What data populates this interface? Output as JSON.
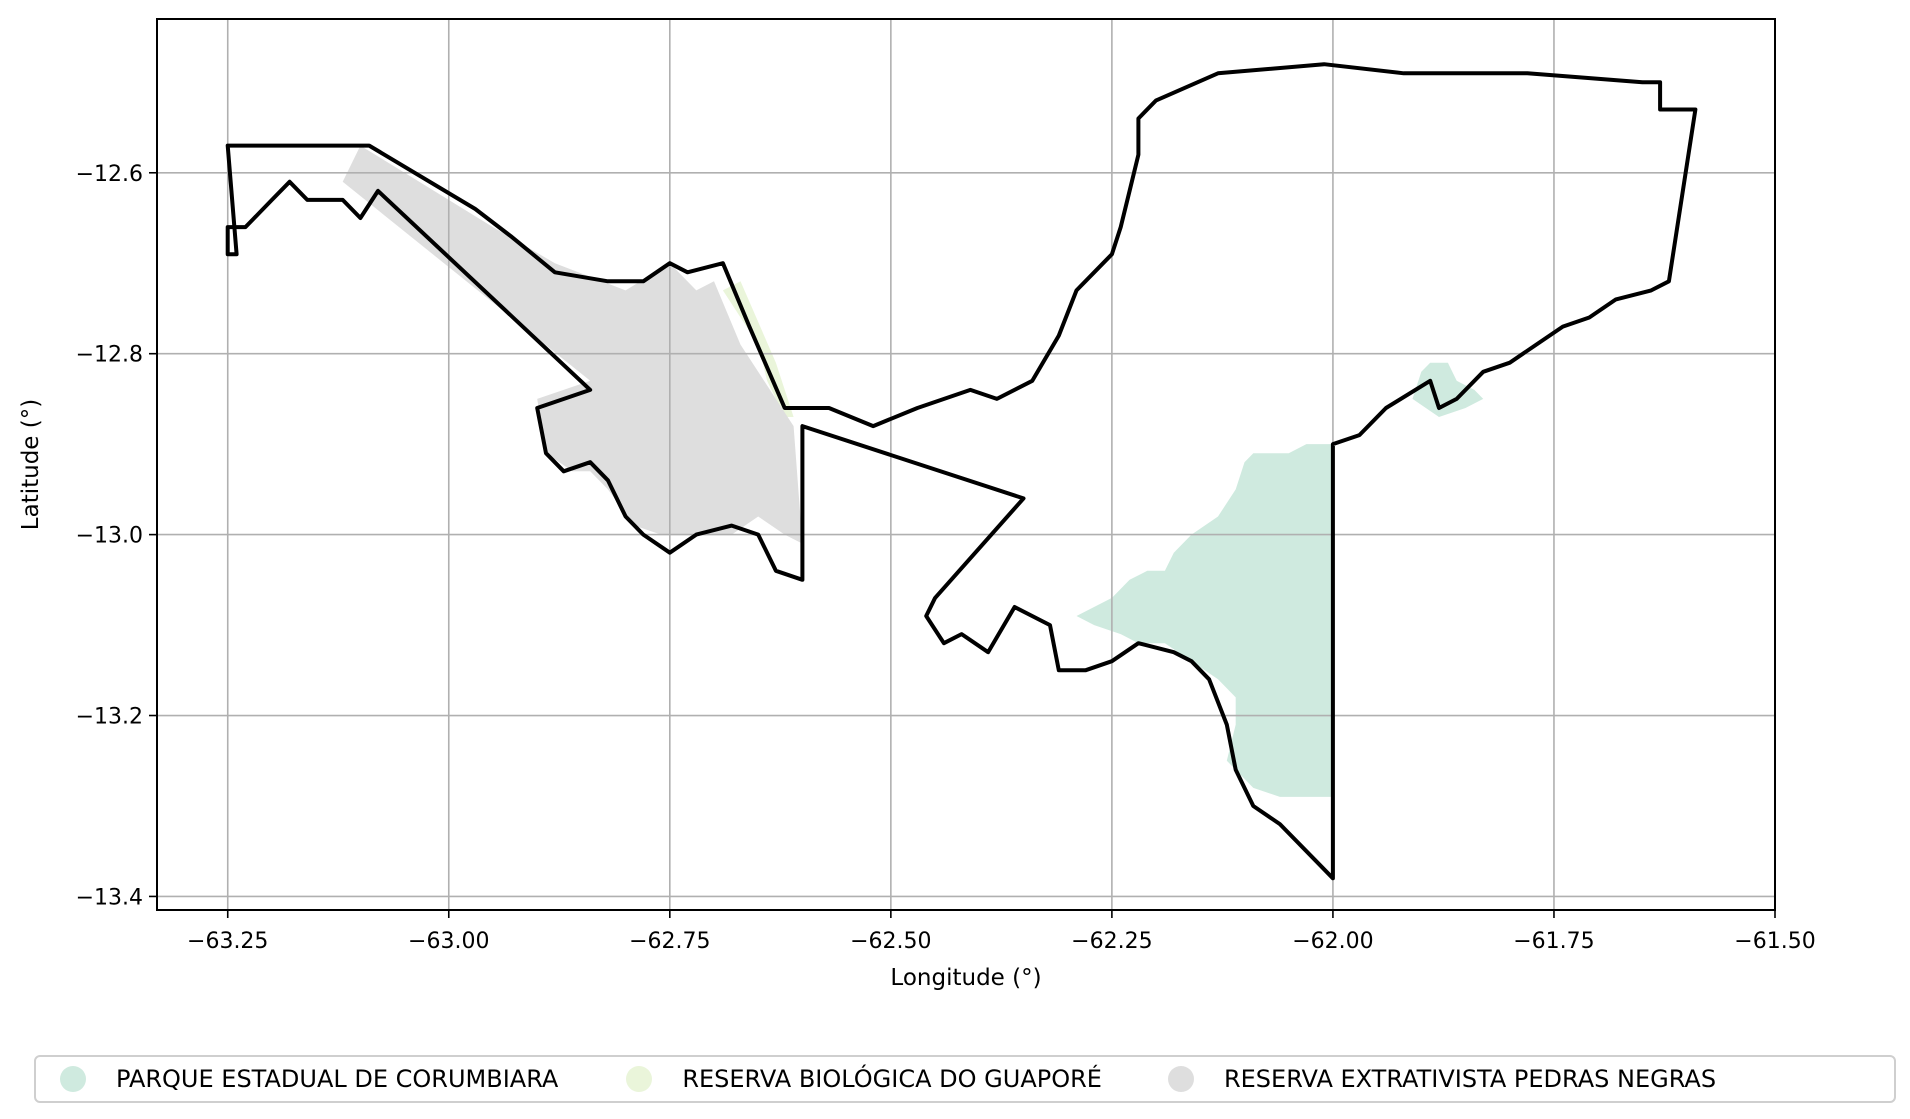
{
  "chart_data": {
    "type": "map",
    "xlabel": "Longitude (°)",
    "ylabel": "Latitude (°)",
    "xlim": [
      -63.33,
      -61.5
    ],
    "ylim": [
      -13.415,
      -12.43
    ],
    "xticks": [
      -63.25,
      -63.0,
      -62.75,
      -62.5,
      -62.25,
      -62.0,
      -61.75,
      -61.5
    ],
    "xtick_labels": [
      "−63.25",
      "−63.00",
      "−62.75",
      "−62.50",
      "−62.25",
      "−62.00",
      "−61.75",
      "−61.50"
    ],
    "yticks": [
      -12.6,
      -12.8,
      -13.0,
      -13.2,
      -13.4
    ],
    "ytick_labels": [
      "−12.6",
      "−12.8",
      "−13.0",
      "−13.2",
      "−13.4"
    ],
    "grid": true,
    "legend_position": "bottom",
    "areas": [
      {
        "name": "PARQUE ESTADUAL DE CORUMBIARA",
        "color": "#cfeadf",
        "polygons": [
          [
            [
              -62.0,
              -12.9
            ],
            [
              -62.03,
              -12.9
            ],
            [
              -62.05,
              -12.91
            ],
            [
              -62.09,
              -12.91
            ],
            [
              -62.1,
              -12.92
            ],
            [
              -62.11,
              -12.95
            ],
            [
              -62.13,
              -12.98
            ],
            [
              -62.16,
              -13.0
            ],
            [
              -62.18,
              -13.02
            ],
            [
              -62.19,
              -13.04
            ],
            [
              -62.21,
              -13.04
            ],
            [
              -62.23,
              -13.05
            ],
            [
              -62.25,
              -13.07
            ],
            [
              -62.29,
              -13.09
            ],
            [
              -62.27,
              -13.1
            ],
            [
              -62.24,
              -13.11
            ],
            [
              -62.22,
              -13.12
            ],
            [
              -62.19,
              -13.12
            ],
            [
              -62.16,
              -13.14
            ],
            [
              -62.13,
              -13.16
            ],
            [
              -62.11,
              -13.18
            ],
            [
              -62.11,
              -13.21
            ],
            [
              -62.12,
              -13.25
            ],
            [
              -62.09,
              -13.28
            ],
            [
              -62.06,
              -13.29
            ],
            [
              -62.0,
              -13.29
            ]
          ],
          [
            [
              -61.89,
              -12.81
            ],
            [
              -61.87,
              -12.81
            ],
            [
              -61.86,
              -12.83
            ],
            [
              -61.84,
              -12.84
            ],
            [
              -61.83,
              -12.85
            ],
            [
              -61.85,
              -12.86
            ],
            [
              -61.88,
              -12.87
            ],
            [
              -61.91,
              -12.85
            ],
            [
              -61.9,
              -12.82
            ]
          ]
        ]
      },
      {
        "name": "RESERVA BIOLÓGICA DO GUAPORÉ",
        "color": "#eaf5da",
        "polygons": [
          [
            [
              -62.69,
              -12.73
            ],
            [
              -62.67,
              -12.72
            ],
            [
              -62.63,
              -12.81
            ],
            [
              -62.61,
              -12.87
            ],
            [
              -62.62,
              -12.87
            ],
            [
              -62.64,
              -12.83
            ],
            [
              -62.65,
              -12.79
            ]
          ]
        ]
      },
      {
        "name": "RESERVA EXTRATIVISTA PEDRAS NEGRAS",
        "color": "#dedede",
        "polygons": [
          [
            [
              -63.1,
              -12.57
            ],
            [
              -62.95,
              -12.66
            ],
            [
              -62.88,
              -12.7
            ],
            [
              -62.8,
              -12.73
            ],
            [
              -62.75,
              -12.7
            ],
            [
              -62.72,
              -12.73
            ],
            [
              -62.7,
              -12.72
            ],
            [
              -62.67,
              -12.79
            ],
            [
              -62.61,
              -12.88
            ],
            [
              -62.6,
              -13.01
            ],
            [
              -62.62,
              -13.0
            ],
            [
              -62.65,
              -12.98
            ],
            [
              -62.68,
              -13.0
            ],
            [
              -62.72,
              -13.0
            ],
            [
              -62.76,
              -13.0
            ],
            [
              -62.79,
              -12.99
            ],
            [
              -62.82,
              -12.95
            ],
            [
              -62.84,
              -12.93
            ],
            [
              -62.86,
              -12.93
            ],
            [
              -62.89,
              -12.91
            ],
            [
              -62.9,
              -12.85
            ],
            [
              -62.84,
              -12.83
            ],
            [
              -63.12,
              -12.61
            ],
            [
              -63.1,
              -12.57
            ]
          ]
        ]
      }
    ],
    "outline": {
      "color": "#000000",
      "rings": [
        [
          [
            -63.25,
            -12.57
          ],
          [
            -63.09,
            -12.57
          ],
          [
            -62.97,
            -12.64
          ],
          [
            -62.93,
            -12.67
          ],
          [
            -62.88,
            -12.71
          ],
          [
            -62.82,
            -12.72
          ],
          [
            -62.78,
            -12.72
          ],
          [
            -62.75,
            -12.7
          ],
          [
            -62.73,
            -12.71
          ],
          [
            -62.69,
            -12.7
          ],
          [
            -62.66,
            -12.77
          ],
          [
            -62.62,
            -12.86
          ],
          [
            -62.57,
            -12.86
          ],
          [
            -62.52,
            -12.88
          ],
          [
            -62.47,
            -12.86
          ],
          [
            -62.41,
            -12.84
          ],
          [
            -62.38,
            -12.85
          ],
          [
            -62.34,
            -12.83
          ],
          [
            -62.31,
            -12.78
          ],
          [
            -62.29,
            -12.73
          ],
          [
            -62.27,
            -12.71
          ],
          [
            -62.25,
            -12.69
          ],
          [
            -62.24,
            -12.66
          ],
          [
            -62.23,
            -12.62
          ],
          [
            -62.22,
            -12.58
          ],
          [
            -62.22,
            -12.54
          ],
          [
            -62.2,
            -12.52
          ],
          [
            -62.13,
            -12.49
          ],
          [
            -62.01,
            -12.48
          ],
          [
            -61.92,
            -12.49
          ],
          [
            -61.78,
            -12.49
          ],
          [
            -61.65,
            -12.5
          ],
          [
            -61.63,
            -12.5
          ],
          [
            -61.63,
            -12.53
          ],
          [
            -61.59,
            -12.53
          ],
          [
            -61.62,
            -12.72
          ],
          [
            -61.64,
            -12.73
          ],
          [
            -61.68,
            -12.74
          ],
          [
            -61.71,
            -12.76
          ],
          [
            -61.74,
            -12.77
          ],
          [
            -61.77,
            -12.79
          ],
          [
            -61.8,
            -12.81
          ],
          [
            -61.83,
            -12.82
          ],
          [
            -61.86,
            -12.85
          ],
          [
            -61.88,
            -12.86
          ],
          [
            -61.89,
            -12.83
          ],
          [
            -61.94,
            -12.86
          ],
          [
            -61.97,
            -12.89
          ],
          [
            -62.0,
            -12.9
          ],
          [
            -62.0,
            -13.38
          ],
          [
            -62.02,
            -13.36
          ],
          [
            -62.06,
            -13.32
          ],
          [
            -62.09,
            -13.3
          ],
          [
            -62.11,
            -13.26
          ],
          [
            -62.12,
            -13.21
          ],
          [
            -62.14,
            -13.16
          ],
          [
            -62.16,
            -13.14
          ],
          [
            -62.18,
            -13.13
          ],
          [
            -62.22,
            -13.12
          ],
          [
            -62.25,
            -13.14
          ],
          [
            -62.28,
            -13.15
          ],
          [
            -62.31,
            -13.15
          ],
          [
            -62.32,
            -13.1
          ],
          [
            -62.36,
            -13.08
          ],
          [
            -62.39,
            -13.13
          ],
          [
            -62.42,
            -13.11
          ],
          [
            -62.44,
            -13.12
          ],
          [
            -62.46,
            -13.09
          ],
          [
            -62.45,
            -13.07
          ],
          [
            -62.35,
            -12.96
          ],
          [
            -62.6,
            -12.88
          ],
          [
            -62.6,
            -13.05
          ],
          [
            -62.63,
            -13.04
          ],
          [
            -62.65,
            -13.0
          ],
          [
            -62.68,
            -12.99
          ],
          [
            -62.72,
            -13.0
          ],
          [
            -62.75,
            -13.02
          ],
          [
            -62.78,
            -13.0
          ],
          [
            -62.8,
            -12.98
          ],
          [
            -62.82,
            -12.94
          ],
          [
            -62.84,
            -12.92
          ],
          [
            -62.87,
            -12.93
          ],
          [
            -62.89,
            -12.91
          ],
          [
            -62.9,
            -12.86
          ],
          [
            -62.84,
            -12.84
          ],
          [
            -63.08,
            -12.62
          ],
          [
            -63.1,
            -12.65
          ],
          [
            -63.12,
            -12.63
          ],
          [
            -63.16,
            -12.63
          ],
          [
            -63.18,
            -12.61
          ],
          [
            -63.2,
            -12.63
          ],
          [
            -63.22,
            -12.65
          ],
          [
            -63.23,
            -12.66
          ],
          [
            -63.25,
            -12.66
          ],
          [
            -63.25,
            -12.69
          ],
          [
            -63.24,
            -12.69
          ],
          [
            -63.25,
            -12.57
          ]
        ]
      ]
    }
  }
}
